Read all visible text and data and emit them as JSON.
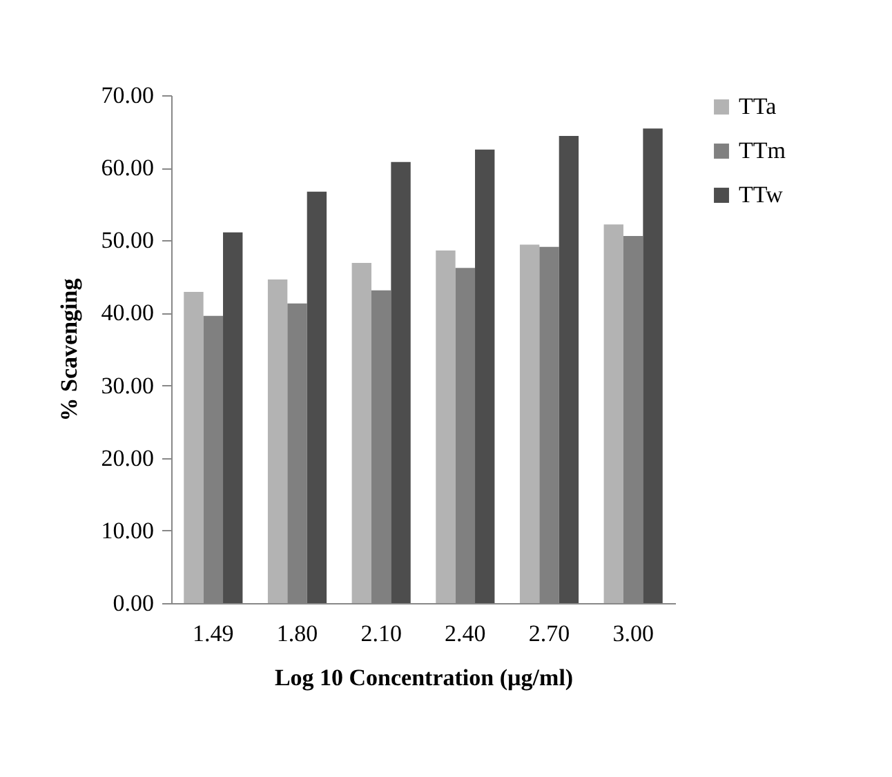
{
  "chart_data": {
    "type": "bar",
    "xlabel": "Log 10 Concentration (µg/ml)",
    "ylabel": "% Scavenging",
    "categories": [
      "1.49",
      "1.80",
      "2.10",
      "2.40",
      "2.70",
      "3.00"
    ],
    "series": [
      {
        "name": "TTa",
        "color": "#b3b3b3",
        "values": [
          42.9,
          44.6,
          46.9,
          48.6,
          49.4,
          52.2
        ]
      },
      {
        "name": "TTm",
        "color": "#808080",
        "values": [
          39.6,
          41.3,
          43.1,
          46.2,
          49.1,
          50.6
        ]
      },
      {
        "name": "TTw",
        "color": "#4d4d4d",
        "values": [
          51.1,
          56.7,
          60.8,
          62.5,
          64.4,
          65.4
        ]
      }
    ],
    "ylim": [
      0,
      70
    ],
    "yticks": [
      {
        "value": 0,
        "label": "0.00"
      },
      {
        "value": 10,
        "label": "10.00"
      },
      {
        "value": 20,
        "label": "20.00"
      },
      {
        "value": 30,
        "label": "30.00"
      },
      {
        "value": 40,
        "label": "40.00"
      },
      {
        "value": 50,
        "label": "50.00"
      },
      {
        "value": 60,
        "label": "60.00"
      },
      {
        "value": 70,
        "label": "70.00"
      }
    ],
    "grid": false,
    "legend": "right"
  }
}
